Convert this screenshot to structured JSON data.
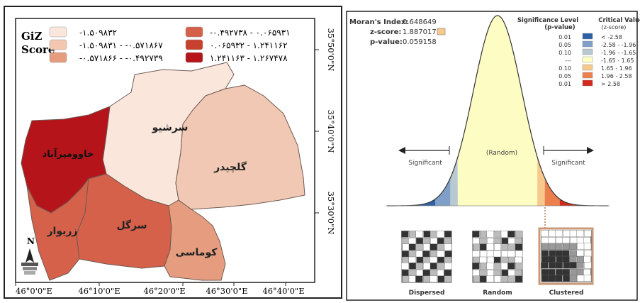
{
  "map": {
    "legend_title_line1": "GiZ",
    "legend_title_line2": "Score",
    "legend": [
      {
        "label": "-۱.۵۰۹۸۳۲",
        "color": "#fbe6dc"
      },
      {
        "label": "-۱.۵۰۹۸۳۱ - -۰.۵۷۱۸۶۷",
        "color": "#f3c7b0"
      },
      {
        "label": "-۰.۵۷۱۸۶۶ - -۰.۴۹۲۷۳۹",
        "color": "#e59c7f"
      },
      {
        "label": "-۰.۴۹۲۷۳۸ - ۰.۰۶۵۹۳۱",
        "color": "#d5614a"
      },
      {
        "label": "۰.۰۶۵۹۳۲ - ۱.۲۴۱۱۶۲",
        "color": "#c8412f"
      },
      {
        "label": "۱.۲۴۱۱۶۳ - ۱.۲۶۷۴۷۸",
        "color": "#b5141b"
      }
    ],
    "regions": [
      {
        "id": "sarshiv",
        "label": "سرشیو",
        "color": "#fbe6dc"
      },
      {
        "id": "galchidar",
        "label": "گلچیدر",
        "color": "#f1c8b3"
      },
      {
        "id": "khav",
        "label": "خاوومیرآباد",
        "color": "#b5141b"
      },
      {
        "id": "zarivar",
        "label": "زریوار",
        "color": "#d5614a"
      },
      {
        "id": "sargol",
        "label": "سرگل",
        "color": "#d5614a"
      },
      {
        "id": "kumasi",
        "label": "کوماسی",
        "color": "#e59c7f"
      }
    ],
    "x_ticks": [
      "46°0'0\"E",
      "46°10'0\"E",
      "46°20'0\"E",
      "46°30'0\"E",
      "46°40'0\"E"
    ],
    "y_ticks": [
      "35°50'0\"N",
      "35°40'0\"N",
      "35°30'0\"N"
    ],
    "north_label": "N"
  },
  "moran": {
    "index_label": "Moran's Index:",
    "index_value": "0.648649",
    "z_label": "z-score:",
    "z_value": "1.887017",
    "p_label": "p-value:",
    "p_value": "0.059158",
    "sig_header_line1": "Significance Level",
    "sig_header_line2": "(p-value)",
    "crit_header_line1": "Critical Value",
    "crit_header_line2": "(z-score)",
    "table": [
      {
        "p": "0.01",
        "z": "< -2.58",
        "color": "#2e62a7"
      },
      {
        "p": "0.05",
        "z": "-2.58 - -1.96",
        "color": "#7f9fc9"
      },
      {
        "p": "0.10",
        "z": "-1.96 - -1.65",
        "color": "#b8c9cf"
      },
      {
        "p": "---",
        "z": "-1.65 - 1.65",
        "color": "#fdfdc3"
      },
      {
        "p": "0.10",
        "z": "1.65 - 1.96",
        "color": "#f7c98c"
      },
      {
        "p": "0.05",
        "z": "1.96 - 2.58",
        "color": "#ec7f4c"
      },
      {
        "p": "0.01",
        "z": "> 2.58",
        "color": "#d22a1e"
      }
    ],
    "random_label": "(Random)",
    "sig_left": "Significant",
    "sig_right": "Significant",
    "thumb_labels": [
      "Dispersed",
      "Random",
      "Clustered"
    ],
    "z_marker_color": "#f7c98c"
  }
}
